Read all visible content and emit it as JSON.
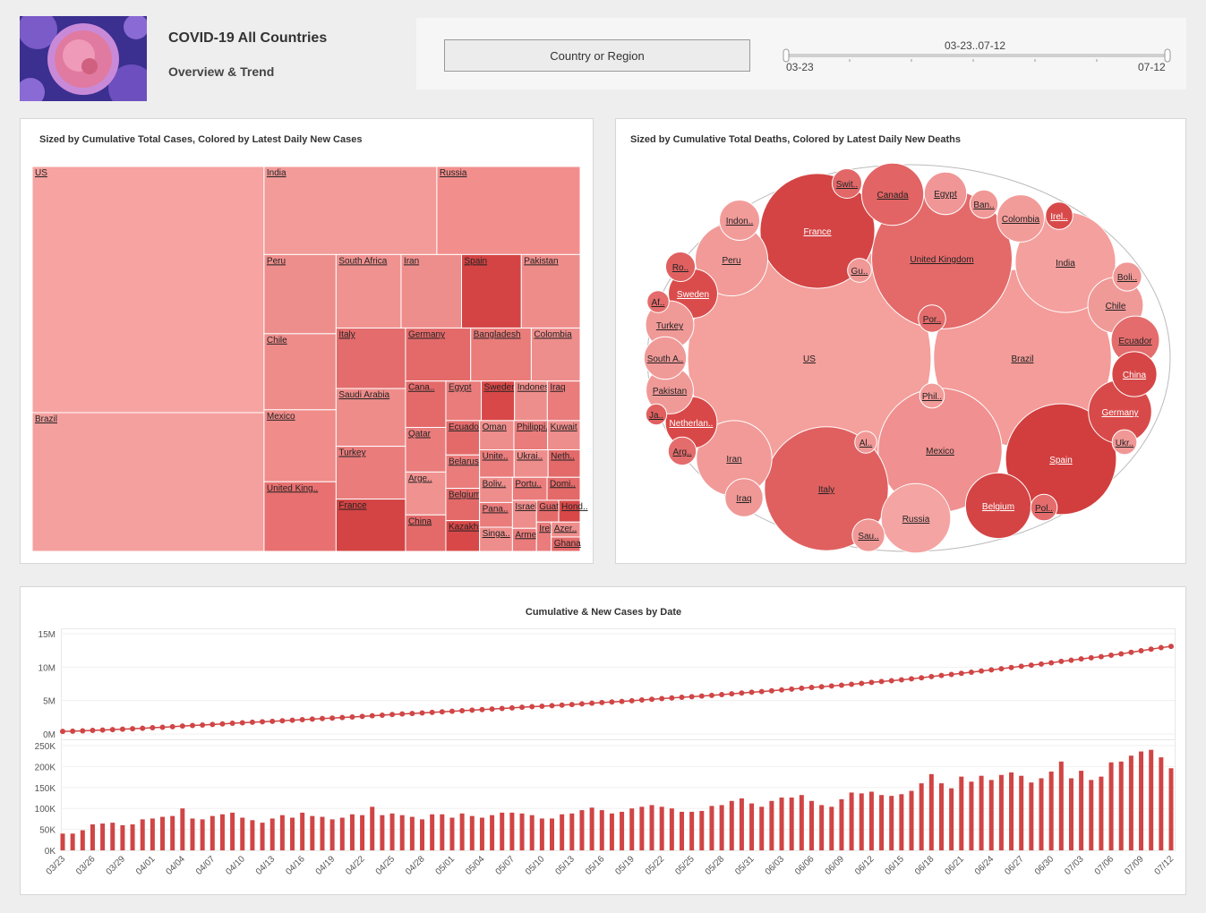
{
  "header": {
    "title": "COVID-19 All Countries",
    "subtitle": "Overview & Trend"
  },
  "filters": {
    "button": "Country or Region",
    "slider_label": "03-23..07-12",
    "slider_min": "03-23",
    "slider_max": "07-12"
  },
  "chart_data": [
    {
      "type": "treemap",
      "title": "Sized by Cumulative Total Cases, Colored by Latest Daily New Cases",
      "categories": [
        "US",
        "Brazil",
        "India",
        "Russia",
        "Peru",
        "Chile",
        "Mexico",
        "United King..",
        "South Africa",
        "Iran",
        "Spain",
        "Pakistan",
        "Italy",
        "Saudi Arabia",
        "Turkey",
        "France",
        "Germany",
        "Bangladesh",
        "Colombia",
        "Cana..",
        "Qatar",
        "Arge..",
        "China",
        "Egypt",
        "Sweden",
        "Indonesia",
        "Iraq",
        "Ecuador",
        "Belarus",
        "Belgium",
        "Kazakhs..",
        "Oman",
        "Philippi..",
        "Kuwait",
        "Unite..",
        "Ukrai..",
        "Neth..",
        "Boliv..",
        "Pana..",
        "Singa..",
        "Portu..",
        "Domi..",
        "Israel",
        "Arme..",
        "Guat..",
        "Hond..",
        "Irela..",
        "Azer..",
        "Ghana"
      ],
      "values": [
        3300000,
        1860000,
        880000,
        730000,
        330000,
        317000,
        300000,
        290000,
        276000,
        257000,
        254000,
        250000,
        243000,
        232000,
        212000,
        210000,
        200000,
        186000,
        150000,
        108000,
        104000,
        100000,
        85000,
        81000,
        76000,
        75000,
        75000,
        67000,
        65000,
        63000,
        60000,
        58000,
        57000,
        55000,
        55000,
        54000,
        51000,
        48000,
        47000,
        46000,
        46000,
        44000,
        39000,
        32000,
        28000,
        27000,
        25000,
        25000,
        24000
      ],
      "colors": [
        "#f6a3a1",
        "#f4a09e",
        "#f29b99",
        "#f28f8d",
        "#ee8e8c",
        "#ee8c8a",
        "#f08c8a",
        "#e87070",
        "#f09290",
        "#ee8e8c",
        "#d44444",
        "#ee8c8a",
        "#e46c6c",
        "#ee8c8a",
        "#ea7c7c",
        "#d44444",
        "#e46a6a",
        "#ea7c7a",
        "#ee8e8c",
        "#e46a6a",
        "#ea7c7c",
        "#f09290",
        "#e46a6a",
        "#ea7c7c",
        "#d84848",
        "#ee8e8c",
        "#ea7c7c",
        "#e46a6a",
        "#ea7c7c",
        "#e46a6a",
        "#d84848",
        "#ee8e8c",
        "#ea7c7c",
        "#ee8e8c",
        "#ea7c7c",
        "#ee8e8c",
        "#e46a6a",
        "#ee8e8c",
        "#ea7c7c",
        "#ee8e8c",
        "#ea7c7c",
        "#e46a6a",
        "#ee8e8c",
        "#ea7c7c",
        "#e46a6a",
        "#d84848",
        "#ea7c7c",
        "#ee8e8c",
        "#e46a6a"
      ]
    },
    {
      "type": "bubble",
      "title": "Sized by Cumulative Total Deaths, Colored by Latest Daily New Deaths",
      "categories": [
        "US",
        "Brazil",
        "United Kingdom",
        "Mexico",
        "Italy",
        "France",
        "Spain",
        "India",
        "Iran",
        "Peru",
        "Russia",
        "Belgium",
        "Germany",
        "Canada",
        "Chile",
        "Netherlan..",
        "Sweden",
        "Ecuador",
        "Turkey",
        "Colombia",
        "Pakistan",
        "China",
        "South A..",
        "Egypt",
        "Indon..",
        "Iraq",
        "Sau..",
        "Ro..",
        "Swit..",
        "Boli..",
        "Arg..",
        "Irel..",
        "Por..",
        "Pol..",
        "Ukr..",
        "Phil..",
        "Gu..",
        "Ban..",
        "Af..",
        "Al..",
        "Ja.."
      ],
      "values": [
        135000,
        72000,
        45000,
        35000,
        35000,
        30000,
        28000,
        23000,
        13000,
        12000,
        11000,
        9800,
        9100,
        8800,
        7000,
        6100,
        5500,
        5300,
        5300,
        5100,
        5100,
        4600,
        4100,
        4100,
        3700,
        3300,
        2400,
        2000,
        2000,
        1900,
        1800,
        1700,
        1700,
        1600,
        1400,
        1400,
        1300,
        1800,
        1100,
        1100,
        1000
      ],
      "colors": [
        "#f4a09c",
        "#f49c99",
        "#e46a6a",
        "#f09090",
        "#e06060",
        "#d44444",
        "#d23e3e",
        "#f4a09e",
        "#f19a98",
        "#f19a98",
        "#f4a4a2",
        "#d44444",
        "#d84a4a",
        "#e26464",
        "#f09a98",
        "#d84848",
        "#da4c4c",
        "#e46c6c",
        "#f09a98",
        "#f29c9a",
        "#f09a98",
        "#d64646",
        "#f09a98",
        "#f09696",
        "#f29c9a",
        "#f09896",
        "#f09896",
        "#e06060",
        "#e26868",
        "#f09896",
        "#e46c6c",
        "#d84a4a",
        "#e46c6c",
        "#e46c6c",
        "#f09896",
        "#f29c9a",
        "#f09896",
        "#f09896",
        "#e46c6c",
        "#f09896",
        "#e06060"
      ]
    },
    {
      "type": "line-bar",
      "title": "Cumulative & New Cases by Date",
      "categories": [
        "03/23",
        null,
        null,
        "03/26",
        null,
        null,
        "03/29",
        null,
        null,
        "04/01",
        null,
        null,
        "04/04",
        null,
        null,
        "04/07",
        null,
        null,
        "04/10",
        null,
        null,
        "04/13",
        null,
        null,
        "04/16",
        null,
        null,
        "04/19",
        null,
        null,
        "04/22",
        null,
        null,
        "04/25",
        null,
        null,
        "04/28",
        null,
        null,
        "05/01",
        null,
        null,
        "05/04",
        null,
        null,
        "05/07",
        null,
        null,
        "05/10",
        null,
        null,
        "05/13",
        null,
        null,
        "05/16",
        null,
        null,
        "05/19",
        null,
        null,
        "05/22",
        null,
        null,
        "05/25",
        null,
        null,
        "05/28",
        null,
        null,
        "05/31",
        null,
        null,
        "06/03",
        null,
        null,
        "06/06",
        null,
        null,
        "06/09",
        null,
        null,
        "06/12",
        null,
        null,
        "06/15",
        null,
        null,
        "06/18",
        null,
        null,
        "06/21",
        null,
        null,
        "06/24",
        null,
        null,
        "06/27",
        null,
        null,
        "06/30",
        null,
        null,
        "07/03",
        null,
        null,
        "07/06",
        null,
        null,
        "07/09",
        null,
        null,
        "07/12"
      ],
      "series": [
        {
          "type": "line",
          "color": "#d04545",
          "ylim": [
            0,
            15000000
          ],
          "yticks": [
            {
              "value": 0,
              "label": "0M"
            },
            {
              "value": 5000000,
              "label": "5M"
            },
            {
              "value": 10000000,
              "label": "10M"
            },
            {
              "value": 15000000,
              "label": "15M"
            }
          ],
          "values": [
            380000,
            420000,
            468000,
            530000,
            594000,
            660000,
            720000,
            782000,
            856000,
            932000,
            1012000,
            1094000,
            1194000,
            1270000,
            1344000,
            1426000,
            1512000,
            1602000,
            1680000,
            1752000,
            1818000,
            1894000,
            1978000,
            2056000,
            2146000,
            2228000,
            2308000,
            2382000,
            2460000,
            2546000,
            2630000,
            2734000,
            2818000,
            2906000,
            2990000,
            3070000,
            3144000,
            3230000,
            3316000,
            3394000,
            3482000,
            3564000,
            3642000,
            3726000,
            3816000,
            3906000,
            3994000,
            4078000,
            4154000,
            4230000,
            4316000,
            4404000,
            4500000,
            4602000,
            4698000,
            4786000,
            4878000,
            4978000,
            5082000,
            5190000,
            5294000,
            5394000,
            5486000,
            5578000,
            5672000,
            5778000,
            5886000,
            6004000,
            6128000,
            6240000,
            6344000,
            6462000,
            6588000,
            6714000,
            6846000,
            6964000,
            7072000,
            7176000,
            7298000,
            7436000,
            7572000,
            7712000,
            7844000,
            7974000,
            8108000,
            8250000,
            8410000,
            8592000,
            8752000,
            8900000,
            9076000,
            9240000,
            9418000,
            9586000,
            9766000,
            9952000,
            10130000,
            10292000,
            10464000,
            10652000,
            10864000,
            11036000,
            11226000,
            11394000,
            11570000,
            11780000,
            11992000,
            12218000,
            12454000,
            12694000,
            12916000,
            13112000
          ]
        },
        {
          "type": "bar",
          "color": "#d04545",
          "ylim": [
            0,
            250000
          ],
          "yticks": [
            {
              "value": 0,
              "label": "0K"
            },
            {
              "value": 50000,
              "label": "50K"
            },
            {
              "value": 100000,
              "label": "100K"
            },
            {
              "value": 150000,
              "label": "150K"
            },
            {
              "value": 200000,
              "label": "200K"
            },
            {
              "value": 250000,
              "label": "250K"
            }
          ],
          "values": [
            40000,
            40000,
            48000,
            62000,
            64000,
            66000,
            60000,
            62000,
            74000,
            76000,
            80000,
            82000,
            100000,
            76000,
            74000,
            82000,
            86000,
            90000,
            78000,
            72000,
            66000,
            76000,
            84000,
            78000,
            90000,
            82000,
            80000,
            74000,
            78000,
            86000,
            84000,
            104000,
            84000,
            88000,
            84000,
            80000,
            74000,
            86000,
            86000,
            78000,
            88000,
            82000,
            78000,
            84000,
            90000,
            90000,
            88000,
            84000,
            76000,
            76000,
            86000,
            88000,
            96000,
            102000,
            96000,
            88000,
            92000,
            100000,
            104000,
            108000,
            104000,
            100000,
            92000,
            92000,
            94000,
            106000,
            108000,
            118000,
            124000,
            112000,
            104000,
            118000,
            126000,
            126000,
            132000,
            118000,
            108000,
            104000,
            122000,
            138000,
            136000,
            140000,
            132000,
            130000,
            134000,
            142000,
            160000,
            182000,
            160000,
            148000,
            176000,
            164000,
            178000,
            168000,
            180000,
            186000,
            178000,
            162000,
            172000,
            188000,
            212000,
            172000,
            190000,
            168000,
            176000,
            210000,
            212000,
            226000,
            236000,
            240000,
            222000,
            196000
          ]
        }
      ]
    }
  ]
}
